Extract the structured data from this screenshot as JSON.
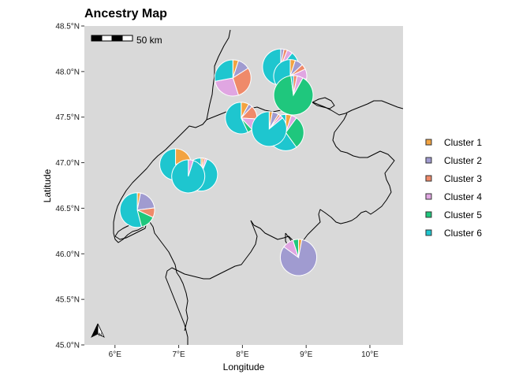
{
  "title": "Ancestry Map",
  "xlabel": "Longitude",
  "ylabel": "Latitude",
  "scale_bar_label": "50 km",
  "north_arrow_label": "N",
  "colors": {
    "panel_bg": "#d9d9d9",
    "Cluster 1": "#f2a341",
    "Cluster 2": "#a09bd0",
    "Cluster 3": "#ef8a6a",
    "Cluster 4": "#e0a6e2",
    "Cluster 5": "#1fc77d",
    "Cluster 6": "#1ec6cf"
  },
  "chart_data": {
    "type": "pie-map",
    "x_ticks": [
      "6°E",
      "7°E",
      "8°E",
      "9°E",
      "10°E"
    ],
    "y_ticks": [
      "45.0°N",
      "45.5°N",
      "46.0°N",
      "46.5°N",
      "47.0°N",
      "47.5°N",
      "48.0°N",
      "48.5°N"
    ],
    "xlim": [
      5.52,
      10.52
    ],
    "ylim": [
      45.0,
      48.5
    ],
    "legend_position": "right",
    "grid": false,
    "clusters": [
      "Cluster 1",
      "Cluster 2",
      "Cluster 3",
      "Cluster 4",
      "Cluster 5",
      "Cluster 6"
    ],
    "pies": [
      {
        "lon": 6.35,
        "lat": 46.48,
        "size": 22,
        "values": [
          0.03,
          0.2,
          0.09,
          0.0,
          0.14,
          0.54
        ]
      },
      {
        "lon": 6.95,
        "lat": 46.98,
        "size": 20,
        "values": [
          0.2,
          0.06,
          0.0,
          0.07,
          0.0,
          0.67
        ]
      },
      {
        "lon": 7.35,
        "lat": 46.87,
        "size": 21,
        "values": [
          0.02,
          0.0,
          0.02,
          0.02,
          0.0,
          0.94
        ]
      },
      {
        "lon": 7.15,
        "lat": 46.85,
        "size": 21,
        "values": [
          0.0,
          0.0,
          0.0,
          0.05,
          0.0,
          0.95
        ]
      },
      {
        "lon": 7.85,
        "lat": 47.93,
        "size": 23,
        "values": [
          0.05,
          0.11,
          0.29,
          0.27,
          0.0,
          0.28
        ]
      },
      {
        "lon": 7.98,
        "lat": 47.49,
        "size": 20,
        "values": [
          0.08,
          0.04,
          0.14,
          0.12,
          0.05,
          0.57
        ]
      },
      {
        "lon": 8.6,
        "lat": 48.05,
        "size": 23,
        "values": [
          0.0,
          0.03,
          0.03,
          0.05,
          0.0,
          0.89
        ]
      },
      {
        "lon": 8.75,
        "lat": 47.95,
        "size": 21,
        "values": [
          0.05,
          0.08,
          0.05,
          0.1,
          0.05,
          0.67
        ]
      },
      {
        "lon": 8.8,
        "lat": 47.74,
        "size": 25,
        "values": [
          0.0,
          0.0,
          0.03,
          0.05,
          0.9,
          0.02
        ]
      },
      {
        "lon": 8.68,
        "lat": 47.33,
        "size": 23,
        "values": [
          0.05,
          0.0,
          0.0,
          0.05,
          0.3,
          0.6
        ]
      },
      {
        "lon": 8.42,
        "lat": 47.37,
        "size": 22,
        "values": [
          0.03,
          0.06,
          0.02,
          0.03,
          0.0,
          0.86
        ]
      },
      {
        "lon": 8.88,
        "lat": 45.96,
        "size": 23,
        "values": [
          0.03,
          0.82,
          0.0,
          0.1,
          0.05,
          0.0
        ]
      }
    ]
  }
}
